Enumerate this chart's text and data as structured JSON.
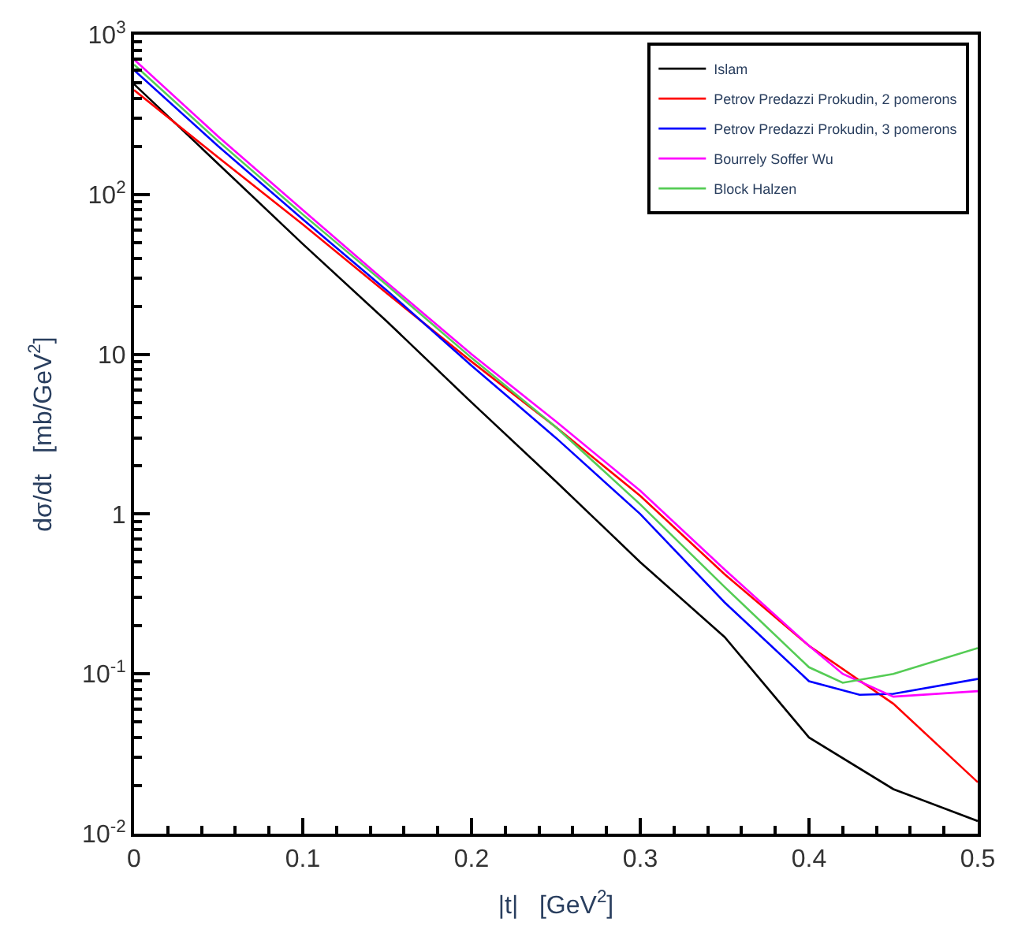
{
  "chart_data": {
    "type": "line",
    "xlabel": "|t|   [GeV$^{2}$]",
    "ylabel": "dσ/dt   [mb/GeV$^{2}$]",
    "log": "y",
    "legend": "top right",
    "marker": "none",
    "line_style": "solid",
    "xlim": [
      0,
      0.5
    ],
    "xticks": [
      0,
      0.1,
      0.2,
      0.3,
      0.4,
      0.5
    ],
    "ylim": [
      0.01,
      1000
    ],
    "yticks": [
      {
        "value": 0.01,
        "label": "10$^{-2}$"
      },
      {
        "value": 0.1,
        "label": "10$^{-1}$"
      },
      1,
      10,
      {
        "value": 100,
        "label": "10$^{2}$"
      },
      {
        "value": 1000,
        "label": "10$^{3}$"
      }
    ],
    "series": [
      {
        "name": "Islam",
        "color": "#000000",
        "x": [
          0,
          0.05,
          0.1,
          0.15,
          0.2,
          0.25,
          0.3,
          0.35,
          0.4,
          0.45,
          0.5
        ],
        "values": [
          490,
          155,
          49,
          16,
          5,
          1.6,
          0.5,
          0.17,
          0.04,
          0.019,
          0.012
        ]
      },
      {
        "name": "Petrov Predazzi Prokudin, 2 pomerons",
        "color": "#ff0000",
        "x": [
          0,
          0.05,
          0.1,
          0.15,
          0.2,
          0.25,
          0.3,
          0.35,
          0.4,
          0.45,
          0.5
        ],
        "values": [
          450,
          170,
          65,
          24,
          9,
          3.5,
          1.3,
          0.42,
          0.15,
          0.065,
          0.021
        ]
      },
      {
        "name": "Petrov Predazzi Prokudin, 3 pomerons",
        "color": "#0000ff",
        "x": [
          0,
          0.05,
          0.1,
          0.15,
          0.2,
          0.25,
          0.3,
          0.35,
          0.4,
          0.43,
          0.45,
          0.5
        ],
        "values": [
          600,
          200,
          70,
          25,
          8.5,
          3.0,
          1.0,
          0.28,
          0.09,
          0.074,
          0.075,
          0.093
        ]
      },
      {
        "name": "Bourrely Soffer Wu",
        "color": "#ff00ff",
        "x": [
          0,
          0.05,
          0.1,
          0.15,
          0.2,
          0.25,
          0.3,
          0.35,
          0.4,
          0.42,
          0.45,
          0.5
        ],
        "values": [
          700,
          230,
          80,
          28,
          10,
          3.8,
          1.4,
          0.45,
          0.15,
          0.1,
          0.072,
          0.078
        ]
      },
      {
        "name": "Block Halzen",
        "color": "#55cc55",
        "x": [
          0,
          0.05,
          0.1,
          0.15,
          0.2,
          0.25,
          0.3,
          0.35,
          0.4,
          0.42,
          0.45,
          0.5
        ],
        "values": [
          650,
          215,
          75,
          27,
          9.5,
          3.5,
          1.15,
          0.35,
          0.11,
          0.088,
          0.1,
          0.145
        ]
      }
    ]
  }
}
